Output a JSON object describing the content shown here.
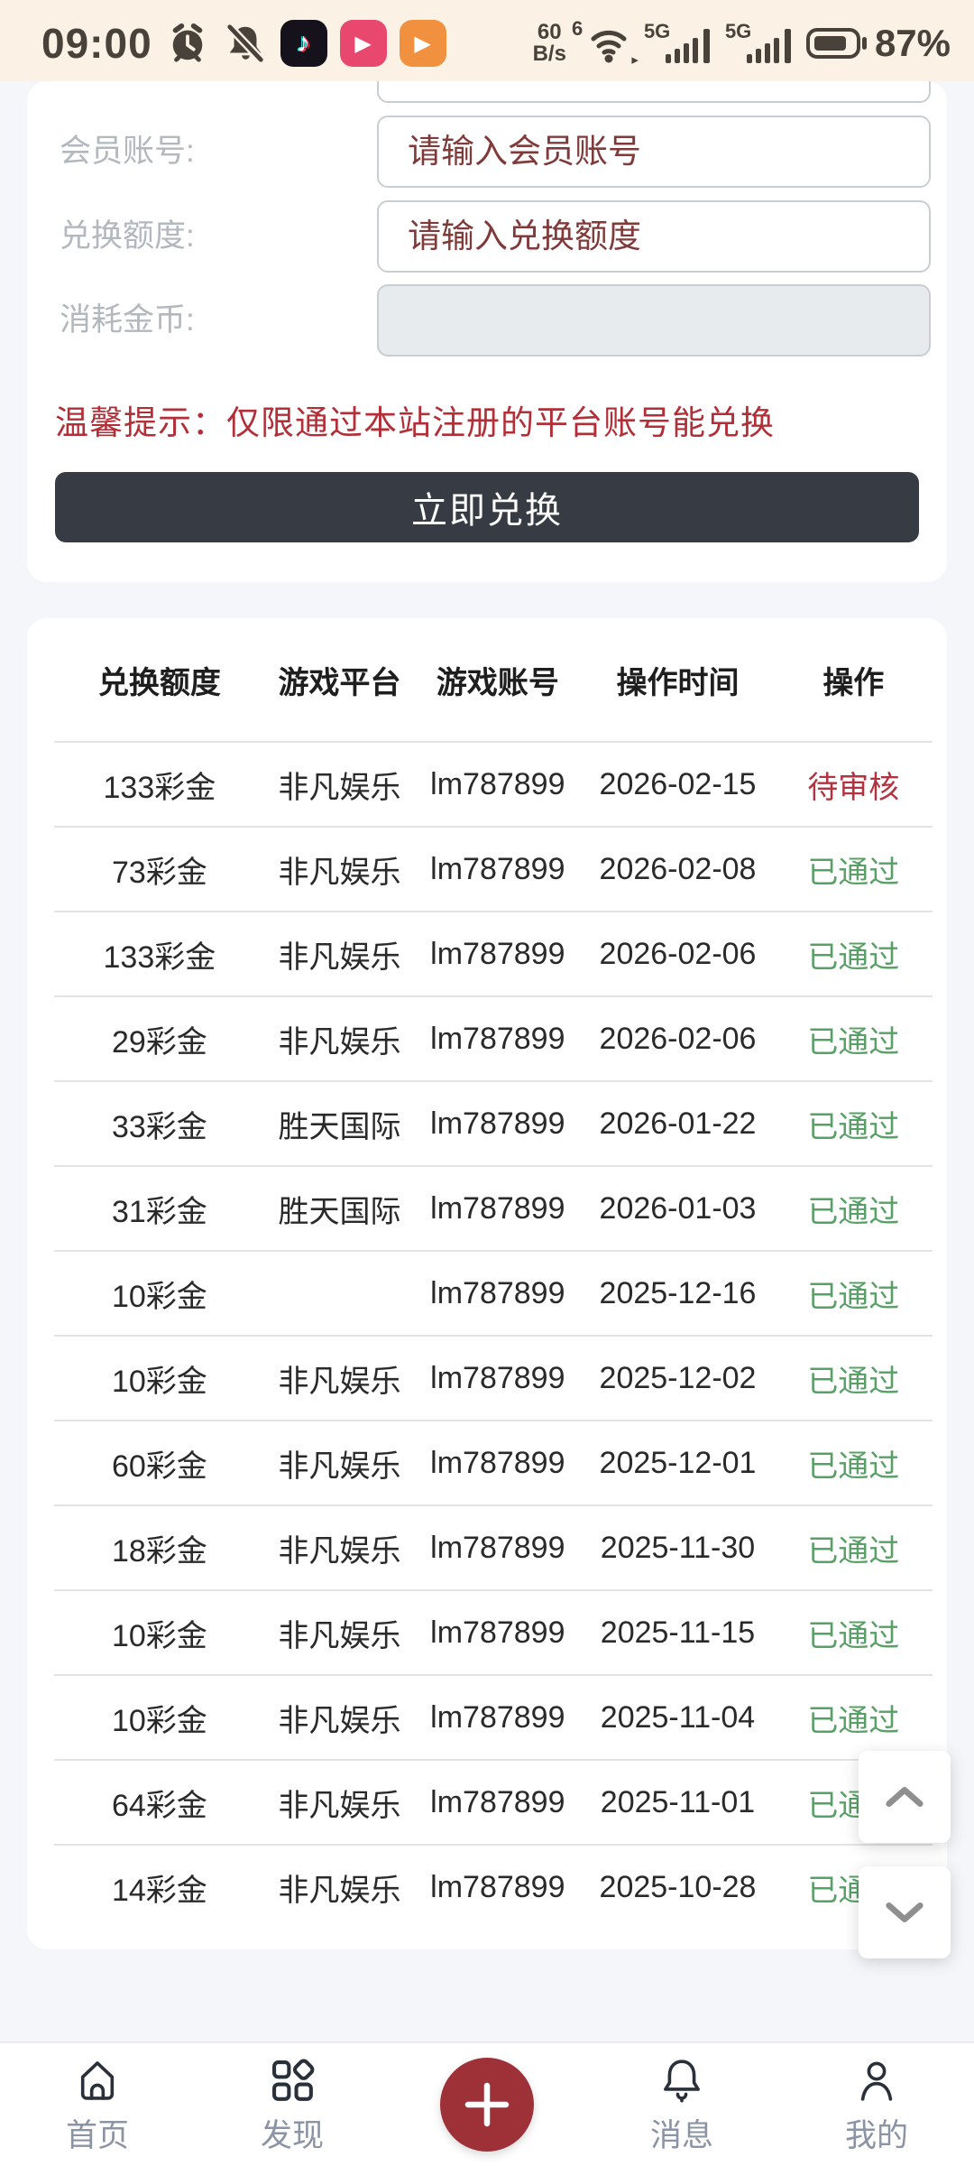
{
  "status_bar": {
    "time": "09:00",
    "icons": [
      "alarm-clock",
      "notifications-muted",
      "tiktok",
      "video-app-pink",
      "video-app-orange"
    ],
    "network_speed_value": "60",
    "network_speed_unit": "B/s",
    "wifi_generation": "6",
    "cellular_1": "5G",
    "cellular_2": "5G",
    "battery_percent": "87%"
  },
  "form": {
    "fields": [
      {
        "label": "会员账号:",
        "placeholder": "请输入会员账号",
        "disabled": false
      },
      {
        "label": "兑换额度:",
        "placeholder": "请输入兑换额度",
        "disabled": false
      },
      {
        "label": "消耗金币:",
        "placeholder": "",
        "disabled": true
      }
    ],
    "notice": "温馨提示：仅限通过本站注册的平台账号能兑换",
    "submit_label": "立即兑换"
  },
  "table": {
    "headers": [
      "兑换额度",
      "游戏平台",
      "游戏账号",
      "操作时间",
      "操作"
    ],
    "rows": [
      [
        "133彩金",
        "非凡娱乐",
        "lm787899",
        "2026-02-15",
        "待审核"
      ],
      [
        "73彩金",
        "非凡娱乐",
        "lm787899",
        "2026-02-08",
        "已通过"
      ],
      [
        "133彩金",
        "非凡娱乐",
        "lm787899",
        "2026-02-06",
        "已通过"
      ],
      [
        "29彩金",
        "非凡娱乐",
        "lm787899",
        "2026-02-06",
        "已通过"
      ],
      [
        "33彩金",
        "胜天国际",
        "lm787899",
        "2026-01-22",
        "已通过"
      ],
      [
        "31彩金",
        "胜天国际",
        "lm787899",
        "2026-01-03",
        "已通过"
      ],
      [
        "10彩金",
        "",
        "lm787899",
        "2025-12-16",
        "已通过"
      ],
      [
        "10彩金",
        "非凡娱乐",
        "lm787899",
        "2025-12-02",
        "已通过"
      ],
      [
        "60彩金",
        "非凡娱乐",
        "lm787899",
        "2025-12-01",
        "已通过"
      ],
      [
        "18彩金",
        "非凡娱乐",
        "lm787899",
        "2025-11-30",
        "已通过"
      ],
      [
        "10彩金",
        "非凡娱乐",
        "lm787899",
        "2025-11-15",
        "已通过"
      ],
      [
        "10彩金",
        "非凡娱乐",
        "lm787899",
        "2025-11-04",
        "已通过"
      ],
      [
        "64彩金",
        "非凡娱乐",
        "lm787899",
        "2025-11-01",
        "已通过"
      ],
      [
        "14彩金",
        "非凡娱乐",
        "lm787899",
        "2025-10-28",
        "已通过"
      ]
    ],
    "status_pending_label": "待审核",
    "status_approved_label": "已通过"
  },
  "nav": {
    "items": [
      {
        "label": "首页",
        "icon": "home-icon"
      },
      {
        "label": "发现",
        "icon": "discover-grid-icon"
      },
      {
        "label": "",
        "icon": "plus-icon"
      },
      {
        "label": "消息",
        "icon": "bell-icon"
      },
      {
        "label": "我的",
        "icon": "profile-icon"
      }
    ]
  },
  "colors": {
    "page_bg": "#f4f6f9",
    "status_bar_bg": "#fbf1e5",
    "card_bg": "#ffffff",
    "accent_red": "#b22f38",
    "placeholder_red": "#803a3a",
    "label_gray": "#b3b8be",
    "button_bg": "#363b44",
    "pending_status": "#b2333f",
    "approved_status": "#57a066",
    "plus_button_bg": "#9e3137",
    "nav_label": "#8b94a4"
  }
}
